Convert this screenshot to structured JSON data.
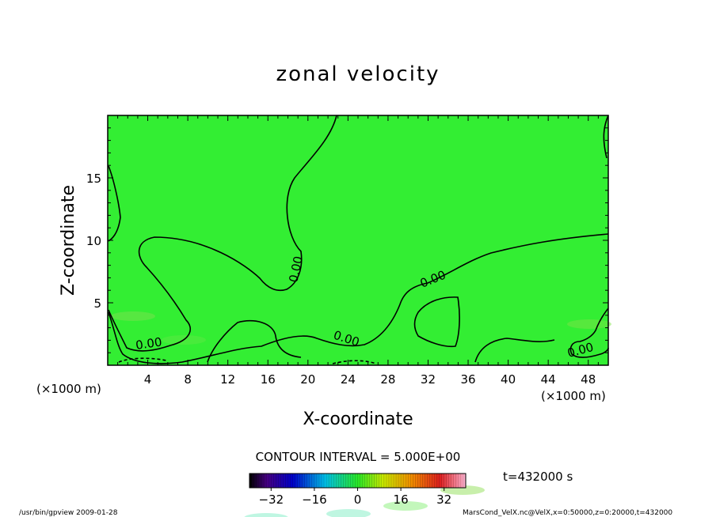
{
  "chart_data": {
    "type": "contour",
    "title": "zonal velocity",
    "xlabel": "X-coordinate",
    "ylabel": "Z-coordinate",
    "x_unit": "(×1000 m)",
    "y_unit": "(×1000 m)",
    "xlim": [
      0,
      50
    ],
    "ylim": [
      0,
      20
    ],
    "x_ticks": [
      4,
      8,
      12,
      16,
      20,
      24,
      28,
      32,
      36,
      40,
      44,
      48
    ],
    "y_ticks": [
      5,
      10,
      15
    ],
    "contour_interval_label": "CONTOUR INTERVAL = 5.000E+00",
    "contour_levels": [
      0
    ],
    "contour_labels": [
      "0.00",
      "0.00",
      "0.00",
      "0.00",
      "0.00"
    ],
    "colorbar": {
      "range": [
        -40,
        40
      ],
      "ticks": [
        -32,
        -16,
        0,
        16,
        32
      ]
    },
    "time_label": "t=432000 s",
    "fill_color": "#33ee33"
  },
  "footer": {
    "left": "/usr/bin/gpview  2009-01-28",
    "right": "MarsCond_VelX.nc@VelX,x=0:50000,z=0:20000,t=432000"
  }
}
